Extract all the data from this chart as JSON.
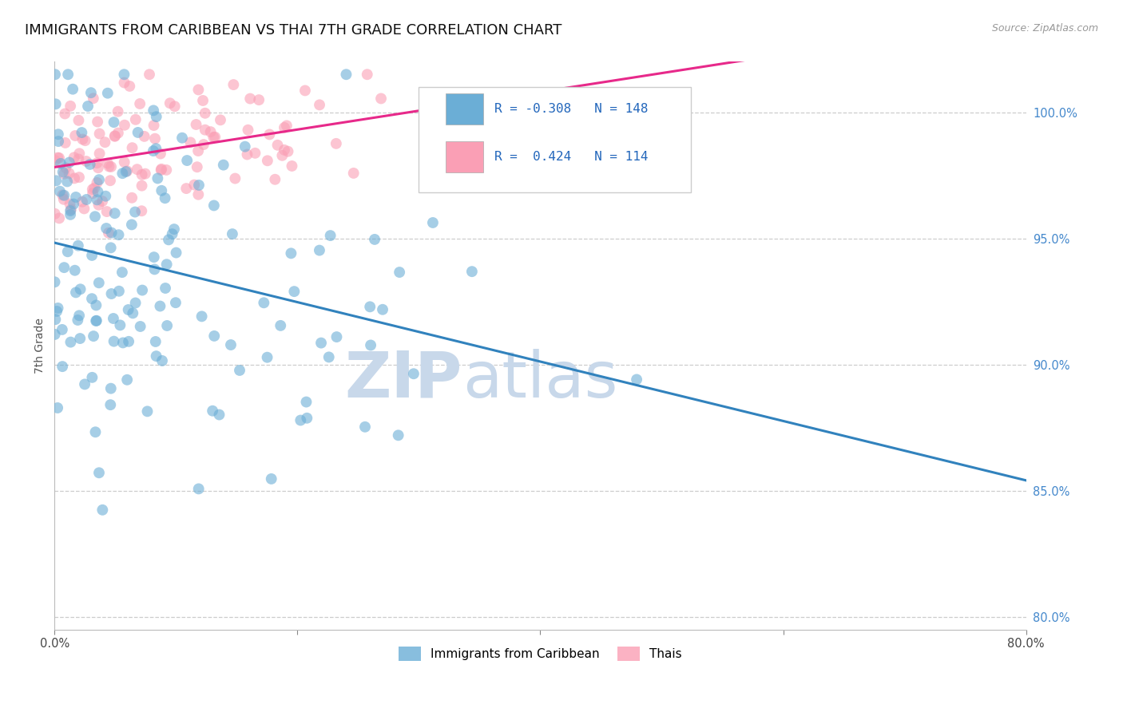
{
  "title": "IMMIGRANTS FROM CARIBBEAN VS THAI 7TH GRADE CORRELATION CHART",
  "source": "Source: ZipAtlas.com",
  "ylabel": "7th Grade",
  "yticks": [
    80.0,
    85.0,
    90.0,
    95.0,
    100.0
  ],
  "xlim": [
    0.0,
    80.0
  ],
  "ylim": [
    79.5,
    102.0
  ],
  "caribbean_R": -0.308,
  "caribbean_N": 148,
  "thai_R": 0.424,
  "thai_N": 114,
  "caribbean_color": "#6baed6",
  "thai_color": "#fa9fb5",
  "caribbean_line_color": "#3182bd",
  "thai_line_color": "#e7298a",
  "title_fontsize": 13,
  "label_fontsize": 10,
  "tick_fontsize": 10.5,
  "watermark_text": "ZIPatlas",
  "watermark_color": "#c8d8ea",
  "background_color": "#ffffff",
  "grid_color": "#c8c8c8",
  "seed": 12
}
